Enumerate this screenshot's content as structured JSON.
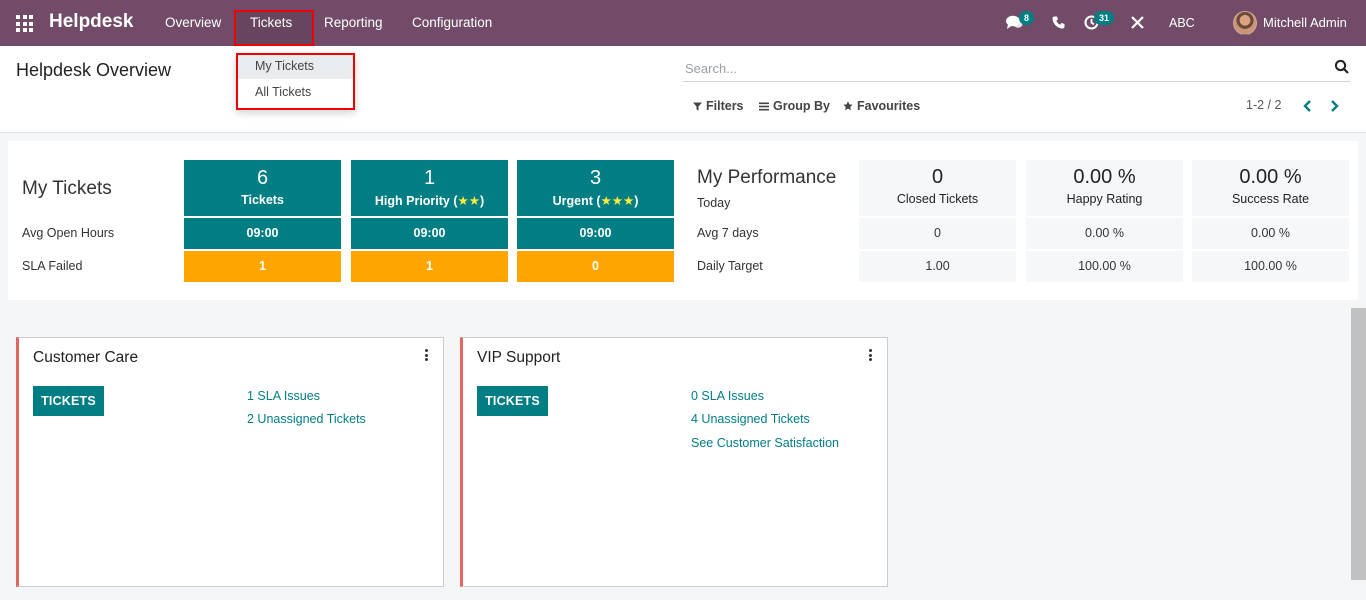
{
  "navbar": {
    "app_name": "Helpdesk",
    "menu": [
      "Overview",
      "Tickets",
      "Reporting",
      "Configuration"
    ],
    "messages_badge": "8",
    "activities_badge": "31",
    "company": "ABC",
    "user": "Mitchell Admin",
    "accent_color": "#714b67"
  },
  "dropdown": {
    "items": [
      "My Tickets",
      "All Tickets"
    ]
  },
  "control_panel": {
    "title": "Helpdesk Overview",
    "search_placeholder": "Search...",
    "filters_label": "Filters",
    "group_by_label": "Group By",
    "favourites_label": "Favourites",
    "pager": "1-2 / 2"
  },
  "my_tickets": {
    "title": "My Tickets",
    "row_labels": [
      "Avg Open Hours",
      "SLA Failed"
    ],
    "columns": [
      {
        "count": "6",
        "label": "Tickets",
        "stars": "",
        "avg_open_hours": "09:00",
        "sla_failed": "1"
      },
      {
        "count": "1",
        "label": "High Priority (",
        "stars": "★★",
        "avg_open_hours": "09:00",
        "sla_failed": "1"
      },
      {
        "count": "3",
        "label": "Urgent (",
        "stars": "★★★",
        "avg_open_hours": "09:00",
        "sla_failed": "0"
      }
    ],
    "label_suffix": ")"
  },
  "my_performance": {
    "title": "My Performance",
    "row_labels": [
      "Today",
      "Avg 7 days",
      "Daily Target"
    ],
    "columns": [
      {
        "today": "0",
        "label": "Closed Tickets",
        "avg_7_days": "0",
        "daily_target": "1.00"
      },
      {
        "today": "0.00 %",
        "label": "Happy Rating",
        "avg_7_days": "0.00 %",
        "daily_target": "100.00 %"
      },
      {
        "today": "0.00 %",
        "label": "Success Rate",
        "avg_7_days": "0.00 %",
        "daily_target": "100.00 %"
      }
    ]
  },
  "teams": [
    {
      "name": "Customer Care",
      "button": "TICKETS",
      "links": [
        "1 SLA Issues",
        "2 Unassigned Tickets"
      ]
    },
    {
      "name": "VIP Support",
      "button": "TICKETS",
      "links": [
        "0 SLA Issues",
        "4 Unassigned Tickets",
        "See Customer Satisfaction"
      ]
    }
  ]
}
